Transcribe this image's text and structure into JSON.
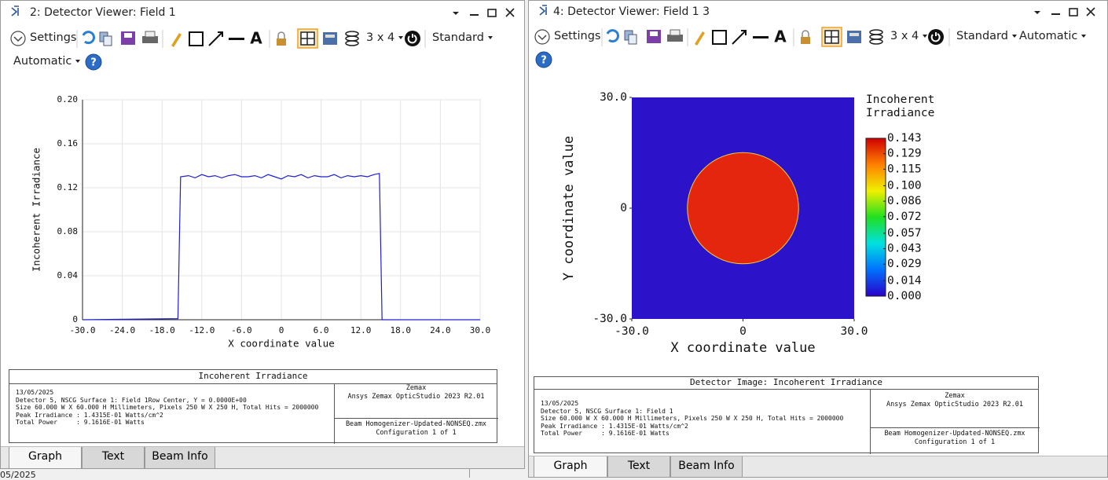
{
  "windows": [
    {
      "title": "2: Detector Viewer: Field 1",
      "toolbar": {
        "settings": "Settings",
        "layout": "3 x 4",
        "scale": "Standard",
        "mode": "Automatic"
      },
      "chart_data": {
        "type": "line",
        "xlabel": "X coordinate value",
        "ylabel": "Incoherent Irradiance",
        "x": [
          -30,
          -15.6,
          -15.2,
          -14,
          -13,
          -12,
          -11,
          -10,
          -9,
          -8,
          -7,
          -6,
          -5,
          -4,
          -3,
          -2,
          -1,
          0,
          1,
          2,
          3,
          4,
          5,
          6,
          7,
          8,
          9,
          10,
          11,
          12,
          13,
          14,
          14.8,
          15.2,
          30
        ],
        "values": [
          0,
          0.001,
          0.13,
          0.131,
          0.129,
          0.132,
          0.13,
          0.131,
          0.129,
          0.131,
          0.132,
          0.13,
          0.13,
          0.131,
          0.129,
          0.132,
          0.13,
          0.128,
          0.131,
          0.13,
          0.132,
          0.129,
          0.131,
          0.13,
          0.13,
          0.132,
          0.129,
          0.131,
          0.13,
          0.131,
          0.13,
          0.132,
          0.133,
          0,
          0
        ],
        "color": "#1f1fd0",
        "xlim": [
          -30,
          30
        ],
        "xticks": [
          {
            "value": -30,
            "label": "-30.0"
          },
          {
            "value": -24,
            "label": "-24.0"
          },
          {
            "value": -18,
            "label": "-18.0"
          },
          {
            "value": -12,
            "label": "-12.0"
          },
          {
            "value": -6,
            "label": "-6.0"
          },
          0,
          {
            "value": 6,
            "label": "6.0"
          },
          {
            "value": 12,
            "label": "12.0"
          },
          {
            "value": 18,
            "label": "18.0"
          },
          {
            "value": 24,
            "label": "24.0"
          },
          {
            "value": 30,
            "label": "30.0"
          }
        ],
        "ylim": [
          0,
          0.2
        ],
        "yticks": [
          0,
          0.04,
          0.08,
          0.12,
          0.16,
          {
            "value": 0.2,
            "label": "0.20"
          }
        ],
        "grid": true
      },
      "info": {
        "title": "Incoherent Irradiance",
        "lines": [
          "13/05/2025",
          "Detector 5, NSCG Surface 1: Field 1Row Center, Y = 0.0000E+00",
          "Size 60.000 W X 60.000 H Millimeters, Pixels 250 W X 250 H, Total Hits = 2000000",
          "Peak Irradiance : 1.4315E-01 Watts/cm^2",
          "Total Power     : 9.1616E-01 Watts"
        ],
        "right_top": [
          "Zemax",
          "Ansys Zemax OpticStudio 2023 R2.01"
        ],
        "right_bottom": [
          "Beam Homogenizer-Updated-NONSEQ.zmx",
          "Configuration 1 of 1"
        ]
      },
      "tabs": [
        "Graph",
        "Text",
        "Beam Info"
      ]
    },
    {
      "title": "4: Detector Viewer: Field 1 3",
      "toolbar": {
        "settings": "Settings",
        "layout": "3 x 4",
        "scale": "Standard",
        "mode": "Automatic"
      },
      "chart_data": {
        "type": "heatmap",
        "xlabel": "X coordinate value",
        "ylabel": "Y coordinate value",
        "xlim": [
          -30,
          30
        ],
        "ylim": [
          -30,
          30
        ],
        "xticks": [
          {
            "value": -30,
            "label": "-30.0"
          },
          0,
          {
            "value": 30,
            "label": "30.0"
          }
        ],
        "yticks": [
          {
            "value": -30,
            "label": "-30.0"
          },
          0,
          {
            "value": 30,
            "label": "30.0"
          }
        ],
        "background": {
          "value": 0,
          "color": "#2c12c8"
        },
        "disc": {
          "center": [
            0,
            0
          ],
          "radius": 15,
          "value": 0.13,
          "color": "#e5260f"
        },
        "colorbar": {
          "title": "Incoherent Irradiance",
          "clim": [
            0,
            0.143
          ],
          "ticks": [
            0.143,
            0.129,
            0.115,
            {
              "value": 0.1,
              "label": "0.100"
            },
            0.086,
            0.072,
            0.057,
            0.043,
            0.029,
            0.014,
            {
              "value": 0,
              "label": "0.000"
            }
          ],
          "colors": [
            "#2a00c8",
            "#0070ff",
            "#00e0e0",
            "#20e020",
            "#f0f000",
            "#ff8000",
            "#d00000"
          ]
        }
      },
      "info": {
        "title": "Detector Image: Incoherent Irradiance",
        "lines": [
          "13/05/2025",
          "Detector 5, NSCG Surface 1: Field 1",
          "Size 60.000 W X 60.000 H Millimeters, Pixels 250 W X 250 H, Total Hits = 2000000",
          "Peak Irradiance : 1.4315E-01 Watts/cm^2",
          "Total Power     : 9.1616E-01 Watts"
        ],
        "right_top": [
          "Zemax",
          "Ansys Zemax OpticStudio 2023 R2.01"
        ],
        "right_bottom": [
          "Beam Homogenizer-Updated-NONSEQ.zmx",
          "Configuration 1 of 1"
        ]
      },
      "tabs": [
        "Graph",
        "Text",
        "Beam Info"
      ]
    }
  ],
  "background_text": "05/2025"
}
